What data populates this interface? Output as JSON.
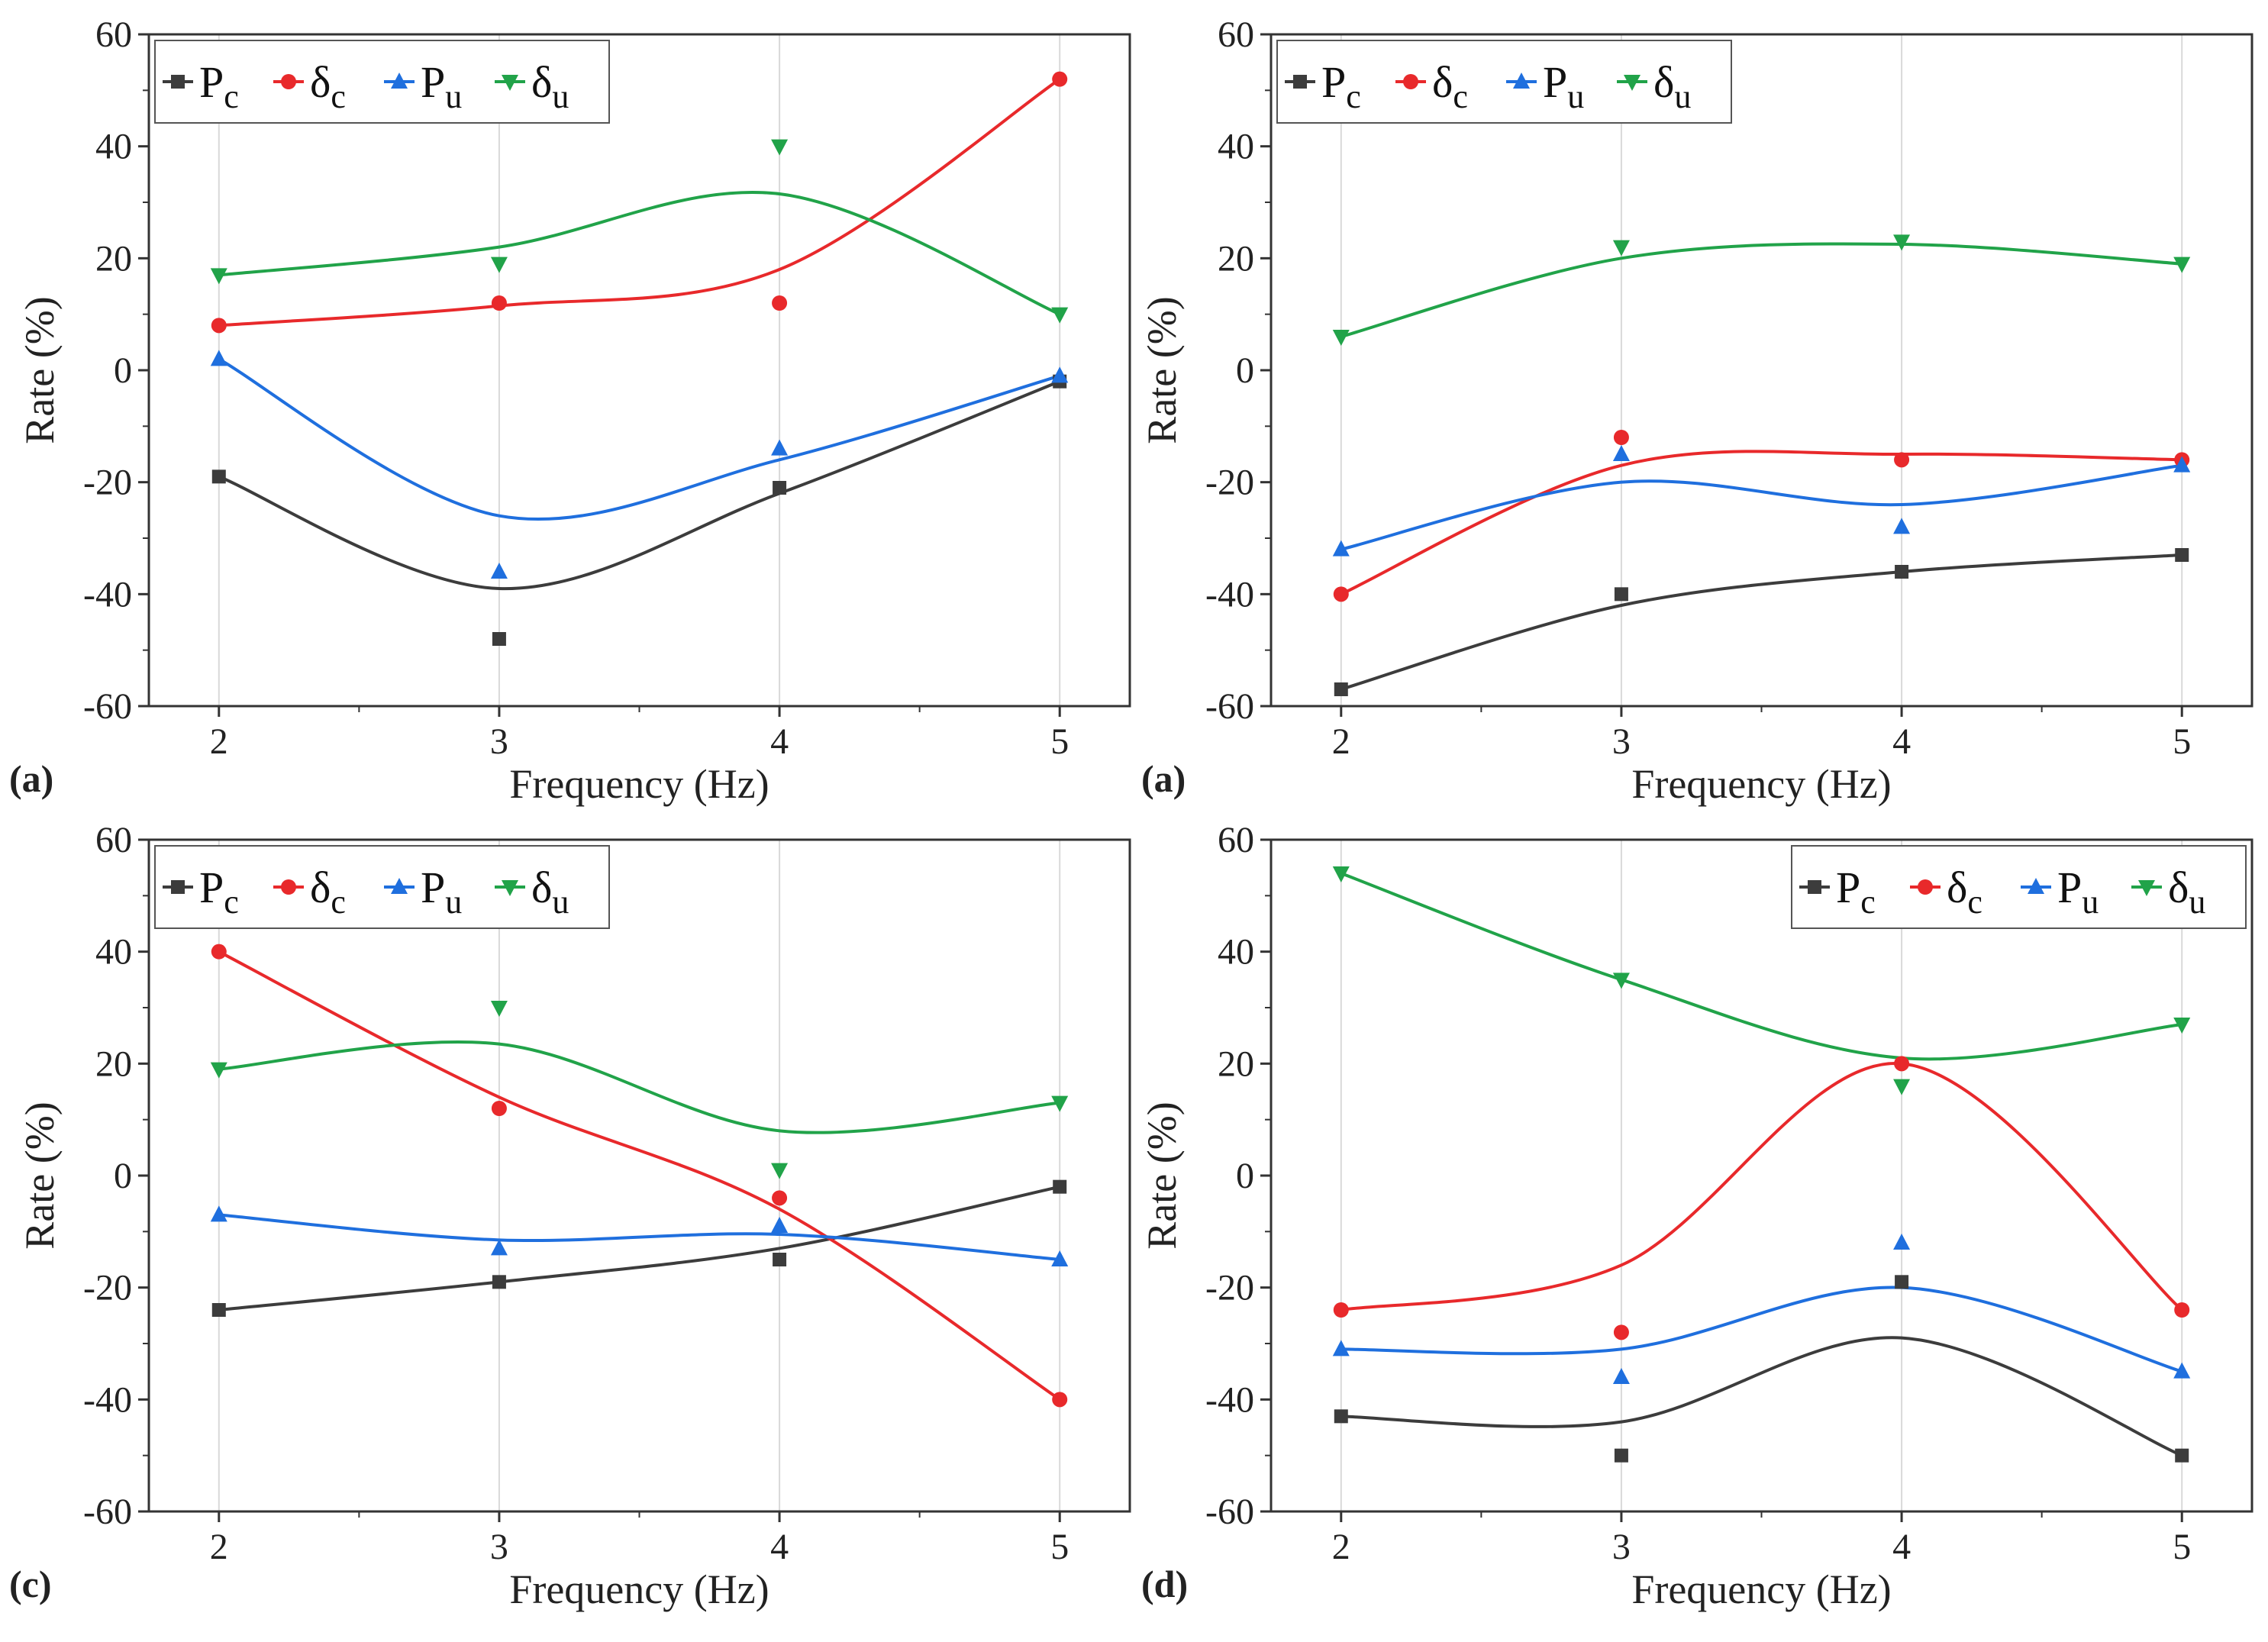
{
  "figure": {
    "colors": {
      "Pc": "#3c3c3c",
      "dc": "#e8292b",
      "Pu": "#1f6fde",
      "du": "#21a349",
      "axis": "#333333",
      "grid": "#d9d9d9"
    },
    "legend_symbols": {
      "P": "P",
      "delta": "δ",
      "c": "c",
      "u": "u"
    },
    "xlabel": "Frequency (Hz)",
    "ylabel": "Rate (%)",
    "xticks": [
      "2",
      "3",
      "4",
      "5"
    ],
    "yticks": [
      "60",
      "40",
      "20",
      "0",
      "-20",
      "-40",
      "-60"
    ]
  },
  "chart_data": [
    {
      "panel": "(a)",
      "type": "line",
      "x": [
        2,
        3,
        4,
        5
      ],
      "xlim": [
        1.75,
        5.25
      ],
      "ylim": [
        -60,
        60
      ],
      "legend_position": "top-left",
      "series": [
        {
          "key": "Pc",
          "name": "Pc",
          "marker": "square",
          "values": [
            -19,
            -48,
            -21,
            -2
          ],
          "curve": [
            -19,
            -39,
            -22,
            -2
          ]
        },
        {
          "key": "dc",
          "name": "δc",
          "marker": "circle",
          "values": [
            8,
            12,
            12,
            52
          ],
          "curve": [
            8,
            11.5,
            18,
            52
          ]
        },
        {
          "key": "Pu",
          "name": "Pu",
          "marker": "triangle-up",
          "values": [
            2,
            -36,
            -14,
            -1
          ],
          "curve": [
            2,
            -26,
            -16,
            -1
          ]
        },
        {
          "key": "du",
          "name": "δu",
          "marker": "triangle-down",
          "values": [
            17,
            19,
            40,
            10
          ],
          "curve": [
            17,
            22,
            31.5,
            10
          ]
        }
      ]
    },
    {
      "panel": "(a)",
      "type": "line",
      "x": [
        2,
        3,
        4,
        5
      ],
      "xlim": [
        1.75,
        5.25
      ],
      "ylim": [
        -60,
        60
      ],
      "legend_position": "top-left",
      "series": [
        {
          "key": "Pc",
          "name": "Pc",
          "marker": "square",
          "values": [
            -57,
            -40,
            -36,
            -33
          ],
          "curve": [
            -57,
            -42,
            -36,
            -33
          ]
        },
        {
          "key": "dc",
          "name": "δc",
          "marker": "circle",
          "values": [
            -40,
            -12,
            -16,
            -16
          ],
          "curve": [
            -40,
            -17,
            -15,
            -16
          ]
        },
        {
          "key": "Pu",
          "name": "Pu",
          "marker": "triangle-up",
          "values": [
            -32,
            -15,
            -28,
            -17
          ],
          "curve": [
            -32,
            -20,
            -24,
            -17
          ]
        },
        {
          "key": "du",
          "name": "δu",
          "marker": "triangle-down",
          "values": [
            6,
            22,
            23,
            19
          ],
          "curve": [
            6,
            20,
            22.5,
            19
          ]
        }
      ]
    },
    {
      "panel": "(c)",
      "type": "line",
      "x": [
        2,
        3,
        4,
        5
      ],
      "xlim": [
        1.75,
        5.25
      ],
      "ylim": [
        -60,
        60
      ],
      "legend_position": "top-left",
      "series": [
        {
          "key": "Pc",
          "name": "Pc",
          "marker": "square",
          "values": [
            -24,
            -19,
            -15,
            -2
          ],
          "curve": [
            -24,
            -19,
            -13,
            -2
          ]
        },
        {
          "key": "dc",
          "name": "δc",
          "marker": "circle",
          "values": [
            40,
            12,
            -4,
            -40
          ],
          "curve": [
            40,
            14,
            -6,
            -40
          ]
        },
        {
          "key": "Pu",
          "name": "Pu",
          "marker": "triangle-up",
          "values": [
            -7,
            -13,
            -9,
            -15
          ],
          "curve": [
            -7,
            -11.5,
            -10.5,
            -15
          ]
        },
        {
          "key": "du",
          "name": "δu",
          "marker": "triangle-down",
          "values": [
            19,
            30,
            1,
            13
          ],
          "curve": [
            19,
            23.5,
            8,
            13
          ]
        }
      ]
    },
    {
      "panel": "(d)",
      "type": "line",
      "x": [
        2,
        3,
        4,
        5
      ],
      "xlim": [
        1.75,
        5.25
      ],
      "ylim": [
        -60,
        60
      ],
      "legend_position": "top-right",
      "series": [
        {
          "key": "Pc",
          "name": "Pc",
          "marker": "square",
          "values": [
            -43,
            -50,
            -19,
            -50
          ],
          "curve": [
            -43,
            -44,
            -29,
            -50
          ]
        },
        {
          "key": "dc",
          "name": "δc",
          "marker": "circle",
          "values": [
            -24,
            -28,
            20,
            -24
          ],
          "curve": [
            -24,
            -16,
            20,
            -24
          ]
        },
        {
          "key": "Pu",
          "name": "Pu",
          "marker": "triangle-up",
          "values": [
            -31,
            -36,
            -12,
            -35
          ],
          "curve": [
            -31,
            -31,
            -20,
            -35
          ]
        },
        {
          "key": "du",
          "name": "δu",
          "marker": "triangle-down",
          "values": [
            54,
            35,
            16,
            27
          ],
          "curve": [
            54,
            35,
            21,
            27
          ]
        }
      ]
    }
  ]
}
